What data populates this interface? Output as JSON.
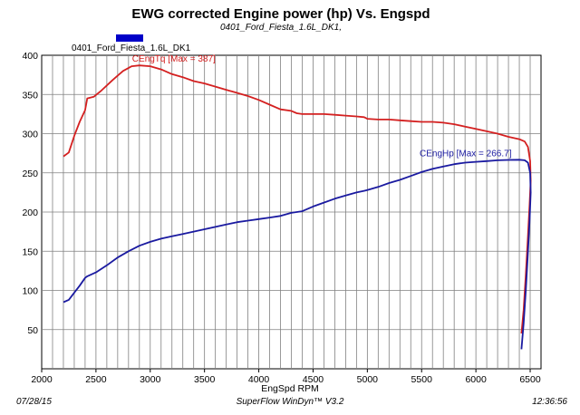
{
  "chart_data": {
    "type": "line",
    "title": "EWG corrected Engine power (hp) Vs. Engspd",
    "subtitle": "0401_Ford_Fiesta_1.6L_DK1,",
    "xlabel": "EngSpd RPM",
    "ylabel": "",
    "xlim": [
      2000,
      6600
    ],
    "ylim": [
      0,
      400
    ],
    "x_ticks": [
      2000,
      2500,
      3000,
      3500,
      4000,
      4500,
      5000,
      5500,
      6000,
      6500
    ],
    "y_ticks": [
      50,
      100,
      150,
      200,
      250,
      300,
      350,
      400
    ],
    "grid": true,
    "legend": {
      "placement": "top-left",
      "label": "0401_Ford_Fiesta_1.6L_DK1",
      "color": "#0000c8"
    },
    "series": [
      {
        "name": "CEngTq",
        "color": "#d42020",
        "annotation": "CEngTq [Max = 387]",
        "points": [
          [
            2200,
            271
          ],
          [
            2250,
            276
          ],
          [
            2300,
            297
          ],
          [
            2350,
            315
          ],
          [
            2400,
            330
          ],
          [
            2420,
            345
          ],
          [
            2480,
            347
          ],
          [
            2550,
            355
          ],
          [
            2650,
            368
          ],
          [
            2750,
            380
          ],
          [
            2830,
            386
          ],
          [
            2900,
            387
          ],
          [
            3000,
            386
          ],
          [
            3100,
            382
          ],
          [
            3200,
            376
          ],
          [
            3300,
            372
          ],
          [
            3400,
            367
          ],
          [
            3500,
            364
          ],
          [
            3600,
            360
          ],
          [
            3700,
            356
          ],
          [
            3800,
            352
          ],
          [
            3900,
            348
          ],
          [
            4000,
            343
          ],
          [
            4100,
            337
          ],
          [
            4200,
            331
          ],
          [
            4300,
            329
          ],
          [
            4350,
            326
          ],
          [
            4400,
            325
          ],
          [
            4500,
            325
          ],
          [
            4600,
            325
          ],
          [
            4700,
            324
          ],
          [
            4800,
            323
          ],
          [
            4900,
            322
          ],
          [
            4970,
            321
          ],
          [
            5000,
            319
          ],
          [
            5100,
            318
          ],
          [
            5200,
            318
          ],
          [
            5300,
            317
          ],
          [
            5400,
            316
          ],
          [
            5500,
            315
          ],
          [
            5600,
            315
          ],
          [
            5700,
            314
          ],
          [
            5800,
            312
          ],
          [
            5900,
            309
          ],
          [
            6000,
            306
          ],
          [
            6100,
            303
          ],
          [
            6200,
            300
          ],
          [
            6300,
            296
          ],
          [
            6400,
            293
          ],
          [
            6450,
            290
          ],
          [
            6480,
            283
          ],
          [
            6500,
            265
          ],
          [
            6505,
            240
          ],
          [
            6495,
            210
          ],
          [
            6480,
            170
          ],
          [
            6460,
            120
          ],
          [
            6440,
            75
          ],
          [
            6420,
            45
          ]
        ]
      },
      {
        "name": "CEngHp",
        "color": "#1a1aa0",
        "annotation": "CEngHp [Max = 266.7]",
        "points": [
          [
            2200,
            85
          ],
          [
            2250,
            88
          ],
          [
            2300,
            97
          ],
          [
            2350,
            106
          ],
          [
            2400,
            116
          ],
          [
            2420,
            118
          ],
          [
            2500,
            123
          ],
          [
            2600,
            132
          ],
          [
            2700,
            142
          ],
          [
            2800,
            150
          ],
          [
            2900,
            157
          ],
          [
            3000,
            162
          ],
          [
            3100,
            166
          ],
          [
            3200,
            169
          ],
          [
            3300,
            172
          ],
          [
            3400,
            175
          ],
          [
            3500,
            178
          ],
          [
            3600,
            181
          ],
          [
            3700,
            184
          ],
          [
            3800,
            187
          ],
          [
            3900,
            189
          ],
          [
            4000,
            191
          ],
          [
            4100,
            193
          ],
          [
            4200,
            195
          ],
          [
            4300,
            199
          ],
          [
            4400,
            201
          ],
          [
            4500,
            207
          ],
          [
            4600,
            212
          ],
          [
            4700,
            217
          ],
          [
            4800,
            221
          ],
          [
            4900,
            225
          ],
          [
            4970,
            227
          ],
          [
            5000,
            228
          ],
          [
            5100,
            232
          ],
          [
            5200,
            237
          ],
          [
            5300,
            241
          ],
          [
            5400,
            246
          ],
          [
            5500,
            251
          ],
          [
            5600,
            255
          ],
          [
            5700,
            258
          ],
          [
            5800,
            261
          ],
          [
            5900,
            263
          ],
          [
            6000,
            264
          ],
          [
            6100,
            265
          ],
          [
            6200,
            266
          ],
          [
            6300,
            266.5
          ],
          [
            6400,
            266.7
          ],
          [
            6450,
            266
          ],
          [
            6480,
            263
          ],
          [
            6500,
            250
          ],
          [
            6505,
            225
          ],
          [
            6495,
            190
          ],
          [
            6480,
            150
          ],
          [
            6460,
            100
          ],
          [
            6440,
            58
          ],
          [
            6420,
            25
          ]
        ]
      }
    ]
  },
  "footer": {
    "date": "07/28/15",
    "software": "SuperFlow WinDyn™ V3.2",
    "time": "12:36:56"
  }
}
